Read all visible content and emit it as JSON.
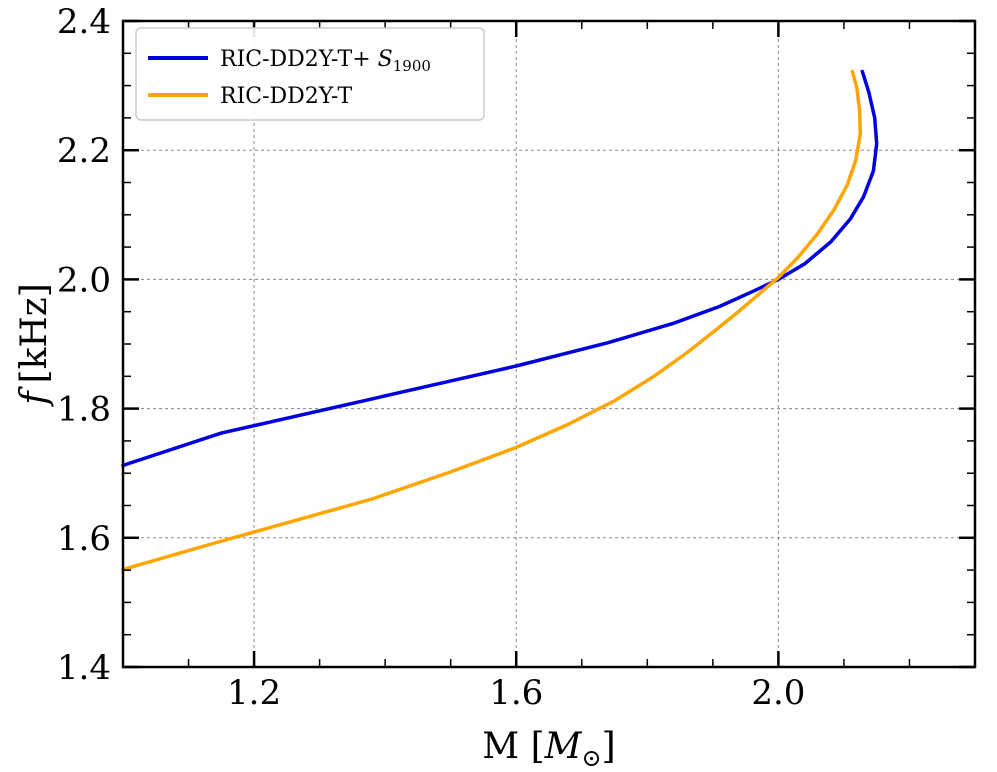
{
  "chart_data": {
    "type": "line",
    "xlabel": "M [M⊙]",
    "xlabel_main": "M [",
    "xlabel_sym": "M",
    "xlabel_sub": "⊙",
    "xlabel_end": "]",
    "ylabel": "f [kHz]",
    "ylabel_f": "f",
    "ylabel_unit": "[kHz]",
    "xlim": [
      1.0,
      2.3
    ],
    "ylim": [
      1.4,
      2.4
    ],
    "xticks": [
      1.2,
      1.6,
      2.0
    ],
    "xtick_labels": [
      "1.2",
      "1.6",
      "2.0"
    ],
    "yticks": [
      1.4,
      1.6,
      1.8,
      2.0,
      2.2,
      2.4
    ],
    "ytick_labels": [
      "1.4",
      "1.6",
      "1.8",
      "2.0",
      "2.2",
      "2.4"
    ],
    "grid": true,
    "legend_position": "top-left",
    "series": [
      {
        "name": "RIC-DD2Y-T+ S1900",
        "name_main": "RIC-DD2Y-T+ ",
        "name_sym": "S",
        "name_sub": "1900",
        "color": "#0000e0",
        "x": [
          1.0,
          1.15,
          1.38,
          1.6,
          1.74,
          1.84,
          1.91,
          1.96,
          2.0,
          2.04,
          2.08,
          2.11,
          2.13,
          2.145,
          2.15,
          2.147,
          2.138,
          2.128
        ],
        "y": [
          1.712,
          1.762,
          1.815,
          1.866,
          1.902,
          1.932,
          1.958,
          1.981,
          2.0,
          2.024,
          2.058,
          2.094,
          2.128,
          2.168,
          2.21,
          2.25,
          2.29,
          2.322
        ]
      },
      {
        "name": "RIC-DD2Y-T",
        "color": "#ffa500",
        "x": [
          1.0,
          1.14,
          1.38,
          1.5,
          1.6,
          1.68,
          1.75,
          1.81,
          1.86,
          1.9,
          1.94,
          1.97,
          2.0,
          2.03,
          2.06,
          2.085,
          2.105,
          2.118,
          2.125,
          2.124,
          2.12,
          2.113
        ],
        "y": [
          1.551,
          1.592,
          1.66,
          1.702,
          1.74,
          1.776,
          1.812,
          1.85,
          1.886,
          1.918,
          1.951,
          1.977,
          2.003,
          2.034,
          2.071,
          2.108,
          2.146,
          2.184,
          2.225,
          2.26,
          2.295,
          2.322
        ]
      }
    ]
  }
}
